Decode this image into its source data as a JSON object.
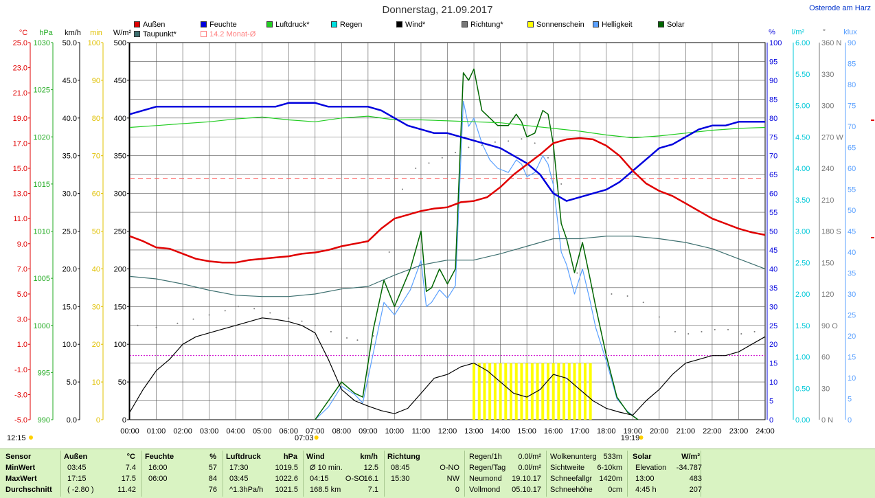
{
  "header": {
    "title": "Donnerstag, 21.09.2017",
    "location": "Osterode am Harz",
    "time_left": "12:15"
  },
  "legend": [
    {
      "label": "Außen",
      "color": "#e00000"
    },
    {
      "label": "Feuchte",
      "color": "#0000dd"
    },
    {
      "label": "Luftdruck*",
      "color": "#22cc22"
    },
    {
      "label": "Regen",
      "color": "#00e0e0"
    },
    {
      "label": "Wind*",
      "color": "#000000"
    },
    {
      "label": "Richtung*",
      "color": "#777777"
    },
    {
      "label": "Sonnenschein",
      "color": "#ffff00"
    },
    {
      "label": "Helligkeit",
      "color": "#5aa0ff"
    },
    {
      "label": "Solar",
      "color": "#006600"
    },
    {
      "label": "Taupunkt*",
      "color": "#3d6f6f"
    },
    {
      "label": "14.2 Monat-Ø",
      "color": "#ff8080"
    }
  ],
  "axes_units": {
    "temp": "°C",
    "hpa": "hPa",
    "kmh": "km/h",
    "min": "min",
    "wm2": "W/m²",
    "pct": "%",
    "lm2": "l/m²",
    "deg": "°",
    "klux": "klux"
  },
  "chart_data": {
    "type": "line",
    "x_labels": [
      "00:00",
      "01:00",
      "02:00",
      "03:00",
      "04:00",
      "05:00",
      "06:00",
      "07:00",
      "08:00",
      "09:00",
      "10:00",
      "11:00",
      "12:00",
      "13:00",
      "14:00",
      "15:00",
      "16:00",
      "17:00",
      "18:00",
      "19:00",
      "20:00",
      "21:00",
      "22:00",
      "23:00",
      "24:00"
    ],
    "sunrise": "07:03",
    "sunset": "19:19",
    "monthly_avg_temp": 14.2,
    "axes": {
      "temp": {
        "min": -5.0,
        "max": 25.0,
        "ticks": [
          "25.0",
          "23.0",
          "21.0",
          "19.0",
          "17.0",
          "15.0",
          "13.0",
          "11.0",
          "9.0",
          "7.0",
          "5.0",
          "3.0",
          "1.0",
          "-1.0",
          "-3.0",
          "-5.0"
        ]
      },
      "hpa": {
        "min": 990,
        "max": 1030,
        "ticks": [
          "1030",
          "1025",
          "1020",
          "1015",
          "1010",
          "1005",
          "1000",
          "995",
          "990"
        ]
      },
      "kmh": {
        "min": 0,
        "max": 50,
        "ticks": [
          "50.0",
          "45.0",
          "40.0",
          "35.0",
          "30.0",
          "25.0",
          "20.0",
          "15.0",
          "10.0",
          "5.0",
          "0.0"
        ]
      },
      "min": {
        "min": 0,
        "max": 100,
        "ticks": [
          "100",
          "90",
          "80",
          "70",
          "60",
          "50",
          "40",
          "30",
          "20",
          "10",
          "0"
        ]
      },
      "wm2": {
        "min": 0,
        "max": 500,
        "ticks": [
          "500",
          "450",
          "400",
          "350",
          "300",
          "250",
          "200",
          "150",
          "100",
          "50",
          "0"
        ]
      },
      "pct": {
        "min": 0,
        "max": 100,
        "ticks": [
          "100",
          "95",
          "90",
          "85",
          "80",
          "75",
          "70",
          "65",
          "60",
          "55",
          "50",
          "45",
          "40",
          "35",
          "30",
          "25",
          "20",
          "15",
          "10",
          "5",
          "0"
        ]
      },
      "lm2": {
        "min": 0,
        "max": 6,
        "ticks": [
          "6.00",
          "5.50",
          "5.00",
          "4.50",
          "4.00",
          "3.50",
          "3.00",
          "2.50",
          "2.00",
          "1.50",
          "1.00",
          "0.50",
          "0.00"
        ]
      },
      "deg": {
        "min": 0,
        "max": 360,
        "ticks": [
          "360 N",
          "330",
          "300",
          "270 W",
          "240",
          "210",
          "180 S",
          "150",
          "120",
          "90 O",
          "60",
          "30",
          "0 N"
        ]
      },
      "klux": {
        "min": 0,
        "max": 90,
        "ticks": [
          "90",
          "85",
          "80",
          "75",
          "70",
          "65",
          "60",
          "55",
          "50",
          "45",
          "40",
          "35",
          "30",
          "25",
          "20",
          "15",
          "10",
          "5",
          "0"
        ]
      }
    },
    "series": [
      {
        "name": "Außen",
        "axis": "temp",
        "color": "#e00000",
        "x": [
          0,
          0.5,
          1,
          1.5,
          2,
          2.5,
          3,
          3.5,
          4,
          4.5,
          5,
          5.5,
          6,
          6.5,
          7,
          7.5,
          8,
          8.5,
          9,
          9.5,
          10,
          10.5,
          11,
          11.5,
          12,
          12.5,
          13,
          13.5,
          14,
          14.5,
          15,
          15.5,
          16,
          16.5,
          17,
          17.5,
          18,
          18.5,
          19,
          19.5,
          20,
          20.5,
          21,
          21.5,
          22,
          22.5,
          23,
          23.5,
          24
        ],
        "values": [
          9.6,
          9.2,
          8.7,
          8.6,
          8.2,
          7.8,
          7.6,
          7.5,
          7.5,
          7.7,
          7.8,
          7.9,
          8.0,
          8.2,
          8.3,
          8.5,
          8.8,
          9.0,
          9.2,
          10.2,
          11.0,
          11.3,
          11.6,
          11.8,
          11.9,
          12.3,
          12.4,
          12.7,
          13.5,
          14.5,
          15.3,
          16.1,
          17.0,
          17.3,
          17.4,
          17.3,
          16.8,
          16.0,
          14.8,
          13.8,
          13.2,
          12.8,
          12.2,
          11.6,
          11.0,
          10.6,
          10.2,
          9.9,
          9.7
        ]
      },
      {
        "name": "Feuchte",
        "axis": "pct",
        "color": "#0000dd",
        "x": [
          0,
          0.5,
          1,
          1.5,
          2,
          2.5,
          3,
          3.5,
          4,
          4.5,
          5,
          5.5,
          6,
          6.5,
          7,
          7.5,
          8,
          8.5,
          9,
          9.5,
          10,
          10.5,
          11,
          11.5,
          12,
          12.5,
          13,
          13.5,
          14,
          14.5,
          15,
          15.5,
          16,
          16.5,
          17,
          17.5,
          18,
          18.5,
          19,
          19.5,
          20,
          20.5,
          21,
          21.5,
          22,
          22.5,
          23,
          23.5,
          24
        ],
        "values": [
          81,
          82,
          83,
          83,
          83,
          83,
          83,
          83,
          83,
          83,
          83,
          83,
          84,
          84,
          84,
          83,
          83,
          83,
          83,
          82,
          80,
          78,
          77,
          76,
          76,
          75,
          74,
          73,
          72,
          70,
          68,
          65,
          60,
          58,
          59,
          60,
          61,
          63,
          66,
          69,
          72,
          73,
          75,
          77,
          78,
          78,
          79,
          79,
          79
        ]
      },
      {
        "name": "Luftdruck*",
        "axis": "hpa",
        "color": "#22cc22",
        "x": [
          0,
          1,
          2,
          3,
          4,
          5,
          6,
          7,
          8,
          9,
          10,
          11,
          12,
          13,
          14,
          15,
          16,
          17,
          18,
          19,
          20,
          21,
          22,
          23,
          24
        ],
        "values": [
          1021.0,
          1021.2,
          1021.4,
          1021.6,
          1021.9,
          1022.1,
          1021.8,
          1021.6,
          1022.0,
          1022.2,
          1021.8,
          1021.8,
          1021.7,
          1021.6,
          1021.5,
          1021.2,
          1020.9,
          1020.6,
          1020.2,
          1019.9,
          1020.1,
          1020.4,
          1020.7,
          1020.9,
          1021.0
        ]
      },
      {
        "name": "Taupunkt*",
        "axis": "temp",
        "color": "#3d6f6f",
        "x": [
          0,
          1,
          2,
          3,
          4,
          5,
          6,
          7,
          8,
          9,
          10,
          11,
          12,
          13,
          14,
          15,
          16,
          17,
          18,
          19,
          20,
          21,
          22,
          23,
          24
        ],
        "values": [
          6.4,
          6.2,
          5.8,
          5.3,
          4.9,
          4.8,
          4.8,
          5.0,
          5.4,
          5.6,
          6.5,
          7.3,
          7.7,
          7.7,
          8.2,
          8.8,
          9.4,
          9.4,
          9.6,
          9.6,
          9.4,
          9.1,
          8.6,
          7.8,
          7.0
        ]
      },
      {
        "name": "Wind*",
        "axis": "kmh",
        "color": "#000000",
        "x": [
          0,
          0.5,
          1,
          1.5,
          2,
          2.5,
          3,
          3.5,
          4,
          4.5,
          5,
          5.5,
          6,
          6.5,
          7,
          7.5,
          8,
          8.5,
          9,
          9.5,
          10,
          10.5,
          11,
          11.5,
          12,
          12.5,
          13,
          13.5,
          14,
          14.5,
          15,
          15.5,
          16,
          16.5,
          17,
          17.5,
          18,
          18.5,
          19,
          19.5,
          20,
          20.5,
          21,
          21.5,
          22,
          22.5,
          23,
          23.5,
          24
        ],
        "values": [
          1.0,
          4.0,
          6.5,
          8.0,
          10.0,
          11.0,
          11.5,
          12.0,
          12.5,
          13.0,
          13.5,
          13.3,
          13.0,
          12.5,
          11.5,
          8.0,
          4.0,
          2.5,
          1.8,
          1.2,
          0.8,
          1.5,
          3.5,
          5.5,
          6.0,
          7.0,
          7.5,
          6.5,
          5.0,
          3.5,
          3.0,
          4.0,
          6.0,
          5.5,
          4.0,
          2.5,
          1.5,
          1.0,
          0.6,
          2.5,
          4.0,
          6.0,
          7.5,
          8.0,
          8.5,
          8.5,
          9.0,
          10.0,
          11.0
        ]
      },
      {
        "name": "Richtung*",
        "axis": "deg",
        "color": "#777777",
        "x": [
          0.3,
          1,
          1.8,
          2.4,
          3,
          3.6,
          4.1,
          4.7,
          5.3,
          6,
          6.5,
          7,
          7.6,
          8.2,
          8.6,
          9.2,
          9.8,
          10.3,
          10.8,
          11.3,
          11.8,
          12.3,
          12.8,
          13.3,
          13.8,
          14.3,
          14.8,
          15.3,
          15.8,
          16.3,
          16.9,
          17.5,
          18.2,
          18.8,
          19.4,
          20,
          20.6,
          21.1,
          21.6,
          22.1,
          22.6,
          23.1,
          23.6
        ],
        "values": [
          90,
          88,
          92,
          96,
          100,
          104,
          108,
          106,
          102,
          97,
          94,
          90,
          84,
          78,
          76,
          80,
          160,
          220,
          240,
          245,
          250,
          255,
          260,
          262,
          265,
          266,
          268,
          264,
          250,
          225,
          140,
          125,
          120,
          118,
          112,
          98,
          84,
          82,
          84,
          86,
          86,
          82,
          84
        ]
      },
      {
        "name": "Solar",
        "axis": "wm2",
        "color": "#006600",
        "x": [
          7.0,
          7.5,
          8.0,
          8.5,
          8.8,
          9.2,
          9.6,
          10.0,
          10.3,
          10.6,
          11.0,
          11.2,
          11.4,
          11.7,
          12.0,
          12.3,
          12.6,
          12.8,
          13.0,
          13.3,
          13.6,
          13.9,
          14.3,
          14.6,
          14.8,
          15.0,
          15.3,
          15.6,
          15.8,
          16.0,
          16.3,
          16.5,
          16.8,
          17.1,
          17.4,
          17.6,
          18.0,
          18.4,
          18.8,
          19.2
        ],
        "values": [
          0,
          25,
          50,
          35,
          30,
          120,
          185,
          150,
          175,
          200,
          250,
          170,
          175,
          200,
          180,
          200,
          460,
          450,
          465,
          410,
          400,
          390,
          390,
          405,
          395,
          375,
          380,
          410,
          405,
          365,
          260,
          240,
          195,
          235,
          185,
          150,
          85,
          30,
          10,
          0
        ]
      },
      {
        "name": "Helligkeit",
        "axis": "klux",
        "color": "#5aa0ff",
        "x": [
          7.0,
          7.5,
          8.0,
          8.5,
          8.8,
          9.2,
          9.6,
          10.0,
          10.3,
          10.6,
          11.0,
          11.2,
          11.4,
          11.7,
          12.0,
          12.3,
          12.6,
          12.8,
          13.0,
          13.3,
          13.6,
          13.9,
          14.3,
          14.6,
          14.8,
          15.0,
          15.3,
          15.6,
          15.8,
          16.0,
          16.3,
          16.5,
          16.8,
          17.1,
          17.4,
          17.6,
          18.0,
          18.4,
          18.8,
          19.2
        ],
        "values": [
          0,
          3,
          8,
          6,
          4,
          16,
          28,
          25,
          28,
          31,
          38,
          27,
          28,
          31,
          29,
          32,
          76,
          70,
          72,
          66,
          62,
          60,
          59,
          62,
          61,
          58,
          59,
          63,
          61,
          56,
          40,
          37,
          30,
          36,
          28,
          22,
          14,
          5,
          2,
          0
        ]
      }
    ],
    "sunshine": {
      "axis": "min",
      "color": "#ffff00",
      "x": [
        13.0,
        13.2,
        13.4,
        13.6,
        13.8,
        14.0,
        14.2,
        14.4,
        14.6,
        14.8,
        15.0,
        15.2,
        15.4,
        15.6,
        15.8,
        16.0,
        16.2,
        16.4,
        16.6,
        16.8,
        17.0,
        17.2,
        17.4
      ],
      "values": [
        15,
        15,
        15,
        15,
        15,
        15,
        15,
        15,
        15,
        15,
        15,
        15,
        15,
        15,
        15,
        15,
        15,
        15,
        15,
        15,
        15,
        15,
        15
      ]
    },
    "magenta_line": {
      "axis": "min",
      "value": 17
    }
  },
  "footer": {
    "sensor": {
      "h": "Sensor",
      "rows": [
        "MinWert",
        "MaxWert",
        "Durchschnitt"
      ]
    },
    "aussen": {
      "h": "Außen",
      "u": "°C",
      "times": [
        "03:45",
        "17:15",
        "( -2.80 )"
      ],
      "vals": [
        "7.4",
        "17.5",
        "11.42"
      ]
    },
    "feuchte": {
      "h": "Feuchte",
      "u": "%",
      "times": [
        "16:00",
        "06:00",
        ""
      ],
      "vals": [
        "57",
        "84",
        "76"
      ]
    },
    "luftdruck": {
      "h": "Luftdruck",
      "u": "hPa",
      "times": [
        "17:30",
        "03:45",
        "^1.3hPa/h"
      ],
      "vals": [
        "1019.5",
        "1022.6",
        "1021.5"
      ]
    },
    "wind": {
      "h": "Wind",
      "u": "km/h",
      "times": [
        "Ø 10 min.",
        "04:15",
        "168.5 km"
      ],
      "mid": [
        "",
        "O-SO",
        ""
      ],
      "vals": [
        "12.5",
        "16.1",
        "7.1"
      ]
    },
    "richtung": {
      "h": "Richtung",
      "times": [
        "08:45",
        "15:30",
        ""
      ],
      "vals": [
        "O-NO",
        "NW",
        "0"
      ]
    },
    "regen": {
      "labels": [
        "Regen/1h",
        "Regen/Tag",
        "Neumond",
        "Vollmond"
      ],
      "vals": [
        "0.0l/m²",
        "0.0l/m²",
        "19.10.17",
        "05.10.17"
      ]
    },
    "wolken": {
      "labels": [
        "Wolkenunterg",
        "Sichtweite",
        "Schneefallgr",
        "Schneehöhe"
      ],
      "vals": [
        "533m",
        "6-10km",
        "1420m",
        "0cm"
      ]
    },
    "solar": {
      "h": "Solar",
      "u": "W/m²",
      "labels": [
        "Elevation",
        "13:00",
        "4:45 h"
      ],
      "vals": [
        "-34.787",
        "483",
        "207"
      ]
    }
  }
}
